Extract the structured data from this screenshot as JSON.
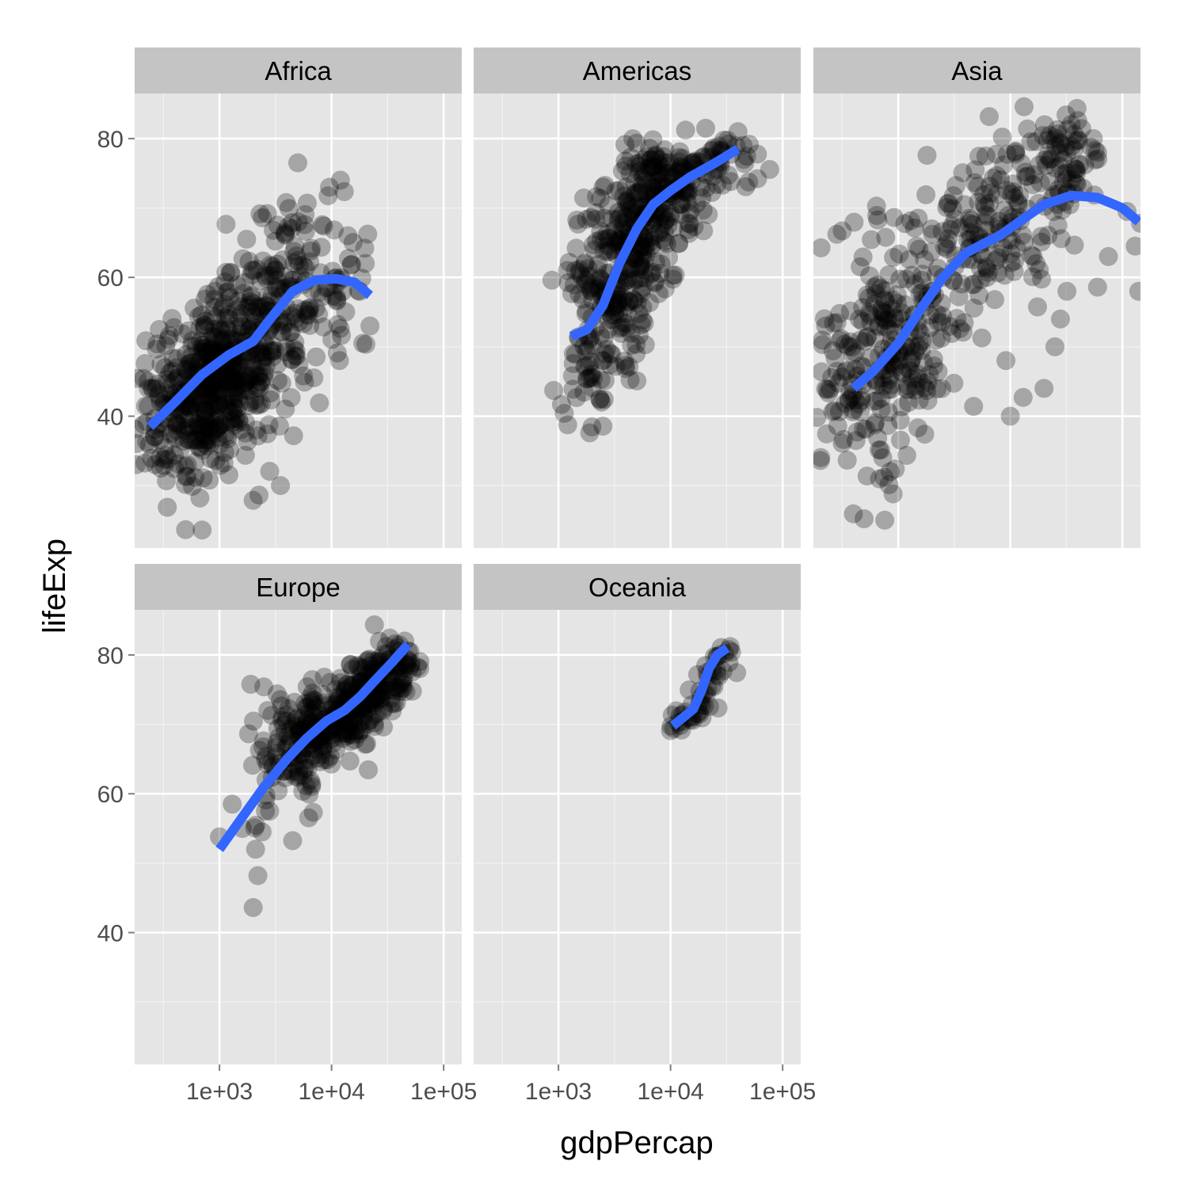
{
  "chart_data": {
    "type": "scatter",
    "xlabel": "gdpPercap",
    "ylabel": "lifeExp",
    "x_scale": "log10",
    "xlim": [
      175,
      145000
    ],
    "ylim": [
      21,
      86.5
    ],
    "x_ticks": [
      1000,
      10000,
      100000
    ],
    "x_tick_labels": [
      "1e+03",
      "1e+04",
      "1e+05"
    ],
    "y_ticks": [
      40,
      60,
      80
    ],
    "y_tick_labels": [
      "40",
      "60",
      "80"
    ],
    "grid": true,
    "colors": {
      "points": "#000000",
      "smooth": "#3366ff",
      "panel": "#e5e5e5",
      "strip": "#c4c4c4"
    },
    "facets": [
      {
        "name": "Africa",
        "cloud": [
          {
            "x": 400,
            "y": 40,
            "sx": 0.22,
            "sy": 5,
            "n": 120
          },
          {
            "x": 800,
            "y": 44,
            "sx": 0.2,
            "sy": 6,
            "n": 220
          },
          {
            "x": 1400,
            "y": 48,
            "sx": 0.2,
            "sy": 6,
            "n": 160
          },
          {
            "x": 2600,
            "y": 52,
            "sx": 0.2,
            "sy": 6,
            "n": 90
          },
          {
            "x": 5000,
            "y": 60,
            "sx": 0.2,
            "sy": 8,
            "n": 70
          },
          {
            "x": 10000,
            "y": 58,
            "sx": 0.2,
            "sy": 8,
            "n": 40
          }
        ],
        "extra_points": [
          [
            700,
            23.6
          ],
          [
            230,
            45
          ],
          [
            300,
            32.5
          ],
          [
            5000,
            76.5
          ],
          [
            12000,
            74
          ],
          [
            14000,
            66
          ],
          [
            20000,
            62
          ],
          [
            22000,
            53
          ],
          [
            19000,
            50.5
          ],
          [
            3500,
            30
          ]
        ],
        "smooth": [
          [
            240,
            38.5
          ],
          [
            400,
            42
          ],
          [
            700,
            46
          ],
          [
            1200,
            48.8
          ],
          [
            2000,
            50.8
          ],
          [
            3000,
            54.5
          ],
          [
            4500,
            58
          ],
          [
            7000,
            59.6
          ],
          [
            11000,
            59.8
          ],
          [
            16000,
            59.3
          ],
          [
            22000,
            57.4
          ]
        ]
      },
      {
        "name": "Americas",
        "cloud": [
          {
            "x": 1800,
            "y": 52,
            "sx": 0.12,
            "sy": 7,
            "n": 70
          },
          {
            "x": 3000,
            "y": 58,
            "sx": 0.15,
            "sy": 7,
            "n": 110
          },
          {
            "x": 5000,
            "y": 66,
            "sx": 0.15,
            "sy": 6,
            "n": 130
          },
          {
            "x": 8000,
            "y": 71,
            "sx": 0.15,
            "sy": 4,
            "n": 110
          },
          {
            "x": 15000,
            "y": 74,
            "sx": 0.18,
            "sy": 3,
            "n": 60
          },
          {
            "x": 30000,
            "y": 77,
            "sx": 0.15,
            "sy": 2,
            "n": 30
          }
        ],
        "extra_points": [
          [
            1900,
            37.6
          ],
          [
            1200,
            61
          ],
          [
            2500,
            73
          ],
          [
            40000,
            81
          ],
          [
            45000,
            77
          ]
        ],
        "smooth": [
          [
            1300,
            51.5
          ],
          [
            1800,
            52.5
          ],
          [
            2500,
            56
          ],
          [
            3500,
            62
          ],
          [
            5000,
            67
          ],
          [
            7000,
            70.5
          ],
          [
            10000,
            72.5
          ],
          [
            15000,
            74.5
          ],
          [
            25000,
            76.5
          ],
          [
            40000,
            78.5
          ]
        ]
      },
      {
        "name": "Asia",
        "cloud": [
          {
            "x": 400,
            "y": 45,
            "sx": 0.25,
            "sy": 8,
            "n": 90
          },
          {
            "x": 800,
            "y": 48,
            "sx": 0.2,
            "sy": 8,
            "n": 100
          },
          {
            "x": 1600,
            "y": 56,
            "sx": 0.25,
            "sy": 8,
            "n": 80
          },
          {
            "x": 3500,
            "y": 63,
            "sx": 0.25,
            "sy": 7,
            "n": 70
          },
          {
            "x": 8000,
            "y": 68,
            "sx": 0.25,
            "sy": 6,
            "n": 60
          },
          {
            "x": 20000,
            "y": 74,
            "sx": 0.2,
            "sy": 5,
            "n": 50
          },
          {
            "x": 35000,
            "y": 78,
            "sx": 0.12,
            "sy": 3,
            "n": 40
          }
        ],
        "extra_points": [
          [
            900,
            28.8
          ],
          [
            750,
            31.2
          ],
          [
            850,
            32
          ],
          [
            420,
            36.5
          ],
          [
            75000,
            63
          ],
          [
            110000,
            69.5
          ],
          [
            140000,
            58
          ],
          [
            150000,
            55.8
          ],
          [
            145000,
            67.8
          ],
          [
            40000,
            82.6
          ],
          [
            55000,
            80
          ],
          [
            60000,
            78
          ],
          [
            20000,
            44
          ],
          [
            25000,
            50
          ],
          [
            28000,
            54
          ],
          [
            32000,
            58
          ],
          [
            60000,
            58.6
          ],
          [
            130000,
            64.5
          ],
          [
            13000,
            42.7
          ],
          [
            10000,
            40
          ]
        ],
        "smooth": [
          [
            400,
            44
          ],
          [
            600,
            46.5
          ],
          [
            1000,
            50.5
          ],
          [
            1600,
            55.5
          ],
          [
            2500,
            60
          ],
          [
            4000,
            63.5
          ],
          [
            6000,
            65
          ],
          [
            8000,
            66
          ],
          [
            12000,
            68
          ],
          [
            20000,
            70.5
          ],
          [
            35000,
            71.8
          ],
          [
            60000,
            71.5
          ],
          [
            100000,
            70
          ],
          [
            140000,
            68
          ]
        ]
      },
      {
        "name": "Europe",
        "cloud": [
          {
            "x": 4000,
            "y": 66,
            "sx": 0.17,
            "sy": 5,
            "n": 80
          },
          {
            "x": 8000,
            "y": 69.5,
            "sx": 0.15,
            "sy": 2.8,
            "n": 110
          },
          {
            "x": 14000,
            "y": 72,
            "sx": 0.15,
            "sy": 2.2,
            "n": 110
          },
          {
            "x": 25000,
            "y": 76,
            "sx": 0.13,
            "sy": 2,
            "n": 90
          },
          {
            "x": 38000,
            "y": 79,
            "sx": 0.1,
            "sy": 1.5,
            "n": 40
          }
        ],
        "extra_points": [
          [
            1000,
            53.8
          ],
          [
            1600,
            55
          ],
          [
            2100,
            52
          ],
          [
            2200,
            48.2
          ],
          [
            2000,
            43.6
          ],
          [
            1300,
            58.5
          ],
          [
            2400,
            54.5
          ],
          [
            2800,
            57.5
          ],
          [
            2600,
            62
          ],
          [
            2700,
            72
          ],
          [
            50000,
            80.5
          ],
          [
            45000,
            82
          ]
        ],
        "smooth": [
          [
            1000,
            52
          ],
          [
            1500,
            56
          ],
          [
            2500,
            61
          ],
          [
            4000,
            65
          ],
          [
            6000,
            68
          ],
          [
            9000,
            70.5
          ],
          [
            13000,
            72
          ],
          [
            18000,
            74
          ],
          [
            25000,
            76.5
          ],
          [
            35000,
            79
          ],
          [
            48000,
            81.5
          ]
        ]
      },
      {
        "name": "Oceania",
        "cloud": [
          {
            "x": 13000,
            "y": 70.5,
            "sx": 0.06,
            "sy": 0.8,
            "n": 15
          },
          {
            "x": 18000,
            "y": 73,
            "sx": 0.06,
            "sy": 1.5,
            "n": 15
          },
          {
            "x": 23000,
            "y": 77,
            "sx": 0.06,
            "sy": 1.5,
            "n": 13
          },
          {
            "x": 30000,
            "y": 80,
            "sx": 0.05,
            "sy": 1,
            "n": 10
          }
        ],
        "extra_points": [
          [
            10000,
            69.1
          ],
          [
            34000,
            81.2
          ],
          [
            15000,
            71
          ],
          [
            20000,
            74.5
          ]
        ],
        "smooth": [
          [
            10500,
            69.8
          ],
          [
            13000,
            71
          ],
          [
            16000,
            72.2
          ],
          [
            19000,
            75
          ],
          [
            22000,
            78
          ],
          [
            26000,
            80
          ],
          [
            32000,
            81
          ]
        ]
      }
    ]
  }
}
